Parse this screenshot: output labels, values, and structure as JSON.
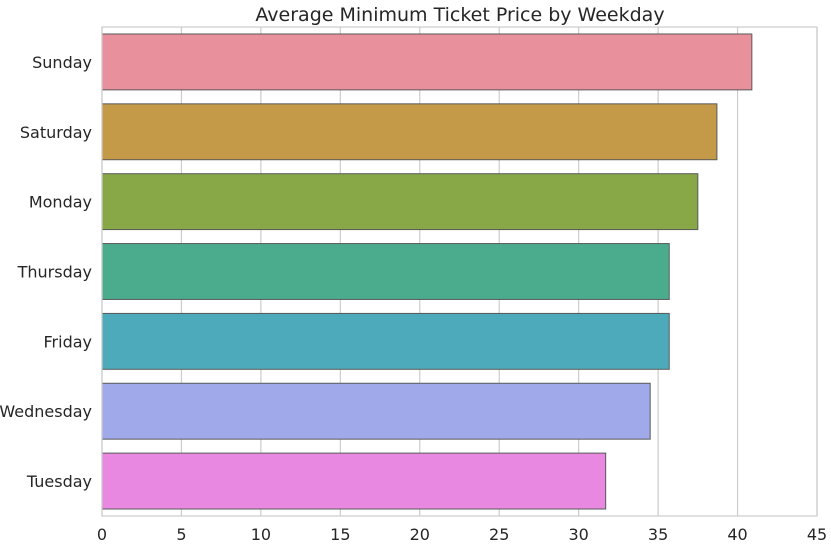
{
  "chart_data": {
    "type": "bar",
    "orientation": "horizontal",
    "title": "Average Minimum Ticket Price by Weekday",
    "xlabel": "",
    "ylabel": "",
    "categories": [
      "Sunday",
      "Saturday",
      "Monday",
      "Thursday",
      "Friday",
      "Wednesday",
      "Tuesday"
    ],
    "values": [
      40.9,
      38.7,
      37.5,
      35.7,
      35.7,
      34.5,
      31.7
    ],
    "colors": [
      "#e8909c",
      "#c49a48",
      "#88a848",
      "#4aac8c",
      "#4caabb",
      "#a0aaea",
      "#e888e0"
    ],
    "xlim": [
      0,
      45
    ],
    "xticks": [
      "0",
      "5",
      "10",
      "15",
      "20",
      "25",
      "30",
      "35",
      "40",
      "45"
    ],
    "grid": "vertical"
  }
}
